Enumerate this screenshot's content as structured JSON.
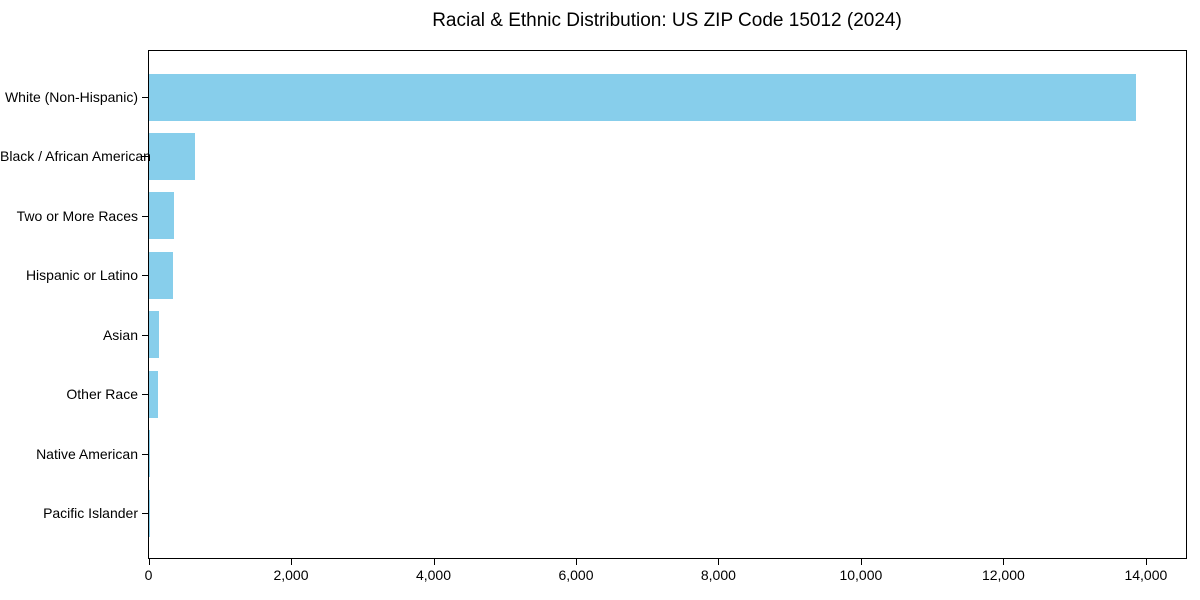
{
  "chart_data": {
    "type": "bar",
    "orientation": "horizontal",
    "title": "Racial & Ethnic Distribution: US ZIP Code 15012 (2024)",
    "categories": [
      "White (Non-Hispanic)",
      "Black / African American",
      "Two or More Races",
      "Hispanic or Latino",
      "Asian",
      "Other Race",
      "Native American",
      "Pacific Islander"
    ],
    "values": [
      13860,
      650,
      345,
      340,
      140,
      130,
      15,
      5
    ],
    "xlabel": "",
    "ylabel": "",
    "xlim": [
      0,
      14570
    ],
    "xticks": [
      0,
      2000,
      4000,
      6000,
      8000,
      10000,
      12000,
      14000
    ],
    "xtick_labels": [
      "0",
      "2,000",
      "4,000",
      "6,000",
      "8,000",
      "10,000",
      "12,000",
      "14,000"
    ],
    "grid": false,
    "legend_position": "none",
    "bar_color": "#87CEEB",
    "background_color": "#FFFFFF",
    "spine_color": "#000000",
    "text_color": "#000000"
  }
}
